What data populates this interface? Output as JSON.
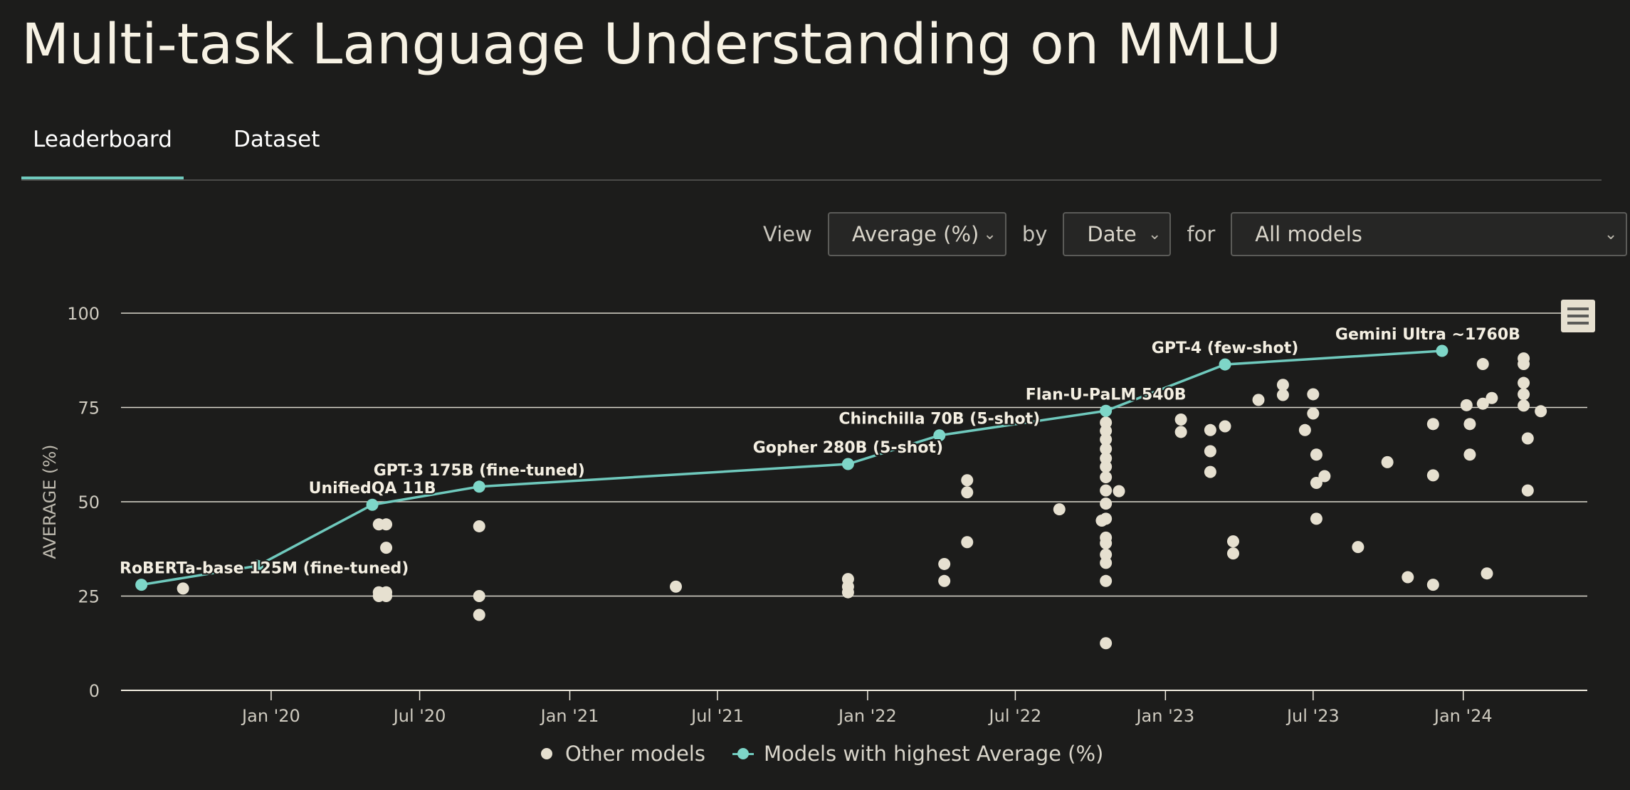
{
  "page": {
    "title": "Multi-task Language Understanding on MMLU",
    "tabs": [
      {
        "label": "Leaderboard",
        "active": true
      },
      {
        "label": "Dataset",
        "active": false
      }
    ]
  },
  "controls": {
    "view_label": "View",
    "view_value": "Average (%)",
    "by_label": "by",
    "by_value": "Date",
    "for_label": "for",
    "for_value": "All models"
  },
  "colors": {
    "background": "#1c1c1b",
    "accent": "#6fc9bd",
    "sota_point": "#7ed6c8",
    "other_point": "#e6e0d0",
    "grid": "#f2eee2"
  },
  "chart_data": {
    "type": "scatter",
    "ylabel": "AVERAGE (%)",
    "xlabel": "",
    "ylim": [
      0,
      100
    ],
    "yticks": [
      0,
      25,
      50,
      75,
      100
    ],
    "xlim": [
      "2019-07-01",
      "2024-06-01"
    ],
    "xticks": [
      {
        "date": "2020-01-01",
        "label": "Jan '20"
      },
      {
        "date": "2020-07-01",
        "label": "Jul '20"
      },
      {
        "date": "2021-01-01",
        "label": "Jan '21"
      },
      {
        "date": "2021-07-01",
        "label": "Jul '21"
      },
      {
        "date": "2022-01-01",
        "label": "Jan '22"
      },
      {
        "date": "2022-07-01",
        "label": "Jul '22"
      },
      {
        "date": "2023-01-01",
        "label": "Jan '23"
      },
      {
        "date": "2023-07-01",
        "label": "Jul '23"
      },
      {
        "date": "2024-01-01",
        "label": "Jan '24"
      }
    ],
    "legend": [
      "Other models",
      "Models with highest Average (%)"
    ],
    "legend_position": "bottom",
    "grid": true,
    "series": [
      {
        "name": "Models with highest Average (%)",
        "points": [
          {
            "date": "2019-07-26",
            "y": 28.0,
            "label": "RoBERTa-base 125M (fine-tuned)"
          },
          {
            "date": "2019-12-15",
            "y": 33.0,
            "label": ""
          },
          {
            "date": "2020-05-04",
            "y": 49.2,
            "label": "UnifiedQA 11B"
          },
          {
            "date": "2020-09-12",
            "y": 54.0,
            "label": "GPT-3 175B (fine-tuned)"
          },
          {
            "date": "2021-12-08",
            "y": 60.0,
            "label": "Gopher 280B (5-shot)"
          },
          {
            "date": "2022-03-30",
            "y": 67.6,
            "label": "Chinchilla 70B (5-shot)"
          },
          {
            "date": "2022-10-20",
            "y": 74.1,
            "label": "Flan-U-PaLM 540B"
          },
          {
            "date": "2023-03-15",
            "y": 86.4,
            "label": "GPT-4 (few-shot)"
          },
          {
            "date": "2023-12-06",
            "y": 90.0,
            "label": "Gemini Ultra ~1760B"
          }
        ]
      },
      {
        "name": "Other models",
        "points": [
          {
            "date": "2019-09-15",
            "y": 27.0
          },
          {
            "date": "2020-05-12",
            "y": 44.0
          },
          {
            "date": "2020-05-12",
            "y": 26.0
          },
          {
            "date": "2020-05-12",
            "y": 25.0
          },
          {
            "date": "2020-05-21",
            "y": 44.0
          },
          {
            "date": "2020-05-21",
            "y": 37.8
          },
          {
            "date": "2020-05-21",
            "y": 26.0
          },
          {
            "date": "2020-05-21",
            "y": 25.0
          },
          {
            "date": "2020-09-12",
            "y": 43.5
          },
          {
            "date": "2020-09-12",
            "y": 25.0
          },
          {
            "date": "2020-09-12",
            "y": 20.0
          },
          {
            "date": "2021-05-11",
            "y": 27.5
          },
          {
            "date": "2021-12-08",
            "y": 29.5
          },
          {
            "date": "2021-12-08",
            "y": 27.5
          },
          {
            "date": "2021-12-08",
            "y": 26.0
          },
          {
            "date": "2022-04-05",
            "y": 33.5
          },
          {
            "date": "2022-04-05",
            "y": 29.0
          },
          {
            "date": "2022-05-03",
            "y": 55.7
          },
          {
            "date": "2022-05-03",
            "y": 52.5
          },
          {
            "date": "2022-05-03",
            "y": 39.3
          },
          {
            "date": "2022-08-24",
            "y": 48.0
          },
          {
            "date": "2022-10-15",
            "y": 45.0
          },
          {
            "date": "2022-10-20",
            "y": 71.0
          },
          {
            "date": "2022-10-20",
            "y": 68.8
          },
          {
            "date": "2022-10-20",
            "y": 66.5
          },
          {
            "date": "2022-10-20",
            "y": 64.0
          },
          {
            "date": "2022-10-20",
            "y": 61.5
          },
          {
            "date": "2022-10-20",
            "y": 59.3
          },
          {
            "date": "2022-10-20",
            "y": 56.5
          },
          {
            "date": "2022-10-20",
            "y": 53.0
          },
          {
            "date": "2022-10-20",
            "y": 49.5
          },
          {
            "date": "2022-10-20",
            "y": 45.5
          },
          {
            "date": "2022-10-20",
            "y": 40.5
          },
          {
            "date": "2022-10-20",
            "y": 39.0
          },
          {
            "date": "2022-10-20",
            "y": 36.0
          },
          {
            "date": "2022-10-20",
            "y": 33.8
          },
          {
            "date": "2022-10-20",
            "y": 29.0
          },
          {
            "date": "2022-10-20",
            "y": 12.5
          },
          {
            "date": "2022-11-05",
            "y": 52.8
          },
          {
            "date": "2023-01-20",
            "y": 71.8
          },
          {
            "date": "2023-01-20",
            "y": 68.5
          },
          {
            "date": "2023-02-25",
            "y": 69.0
          },
          {
            "date": "2023-02-25",
            "y": 63.4
          },
          {
            "date": "2023-02-25",
            "y": 57.9
          },
          {
            "date": "2023-03-15",
            "y": 70.0
          },
          {
            "date": "2023-03-25",
            "y": 39.5
          },
          {
            "date": "2023-03-25",
            "y": 36.3
          },
          {
            "date": "2023-04-25",
            "y": 77.0
          },
          {
            "date": "2023-05-25",
            "y": 81.0
          },
          {
            "date": "2023-05-25",
            "y": 78.3
          },
          {
            "date": "2023-06-21",
            "y": 69.0
          },
          {
            "date": "2023-07-01",
            "y": 78.5
          },
          {
            "date": "2023-07-01",
            "y": 73.4
          },
          {
            "date": "2023-07-05",
            "y": 62.5
          },
          {
            "date": "2023-07-05",
            "y": 55.0
          },
          {
            "date": "2023-07-05",
            "y": 45.5
          },
          {
            "date": "2023-07-15",
            "y": 56.8
          },
          {
            "date": "2023-08-25",
            "y": 38.0
          },
          {
            "date": "2023-09-30",
            "y": 60.5
          },
          {
            "date": "2023-10-25",
            "y": 30.0
          },
          {
            "date": "2023-11-25",
            "y": 70.6
          },
          {
            "date": "2023-11-25",
            "y": 57.0
          },
          {
            "date": "2023-11-25",
            "y": 28.0
          },
          {
            "date": "2024-01-05",
            "y": 75.6
          },
          {
            "date": "2024-01-09",
            "y": 70.6
          },
          {
            "date": "2024-01-09",
            "y": 62.5
          },
          {
            "date": "2024-01-25",
            "y": 86.5
          },
          {
            "date": "2024-01-25",
            "y": 76.0
          },
          {
            "date": "2024-01-30",
            "y": 31.0
          },
          {
            "date": "2024-02-05",
            "y": 77.5
          },
          {
            "date": "2024-03-15",
            "y": 88.0
          },
          {
            "date": "2024-03-15",
            "y": 86.5
          },
          {
            "date": "2024-03-15",
            "y": 81.5
          },
          {
            "date": "2024-03-15",
            "y": 78.5
          },
          {
            "date": "2024-03-15",
            "y": 75.5
          },
          {
            "date": "2024-03-20",
            "y": 66.8
          },
          {
            "date": "2024-03-20",
            "y": 53.0
          },
          {
            "date": "2024-04-05",
            "y": 74.0
          }
        ]
      }
    ]
  }
}
